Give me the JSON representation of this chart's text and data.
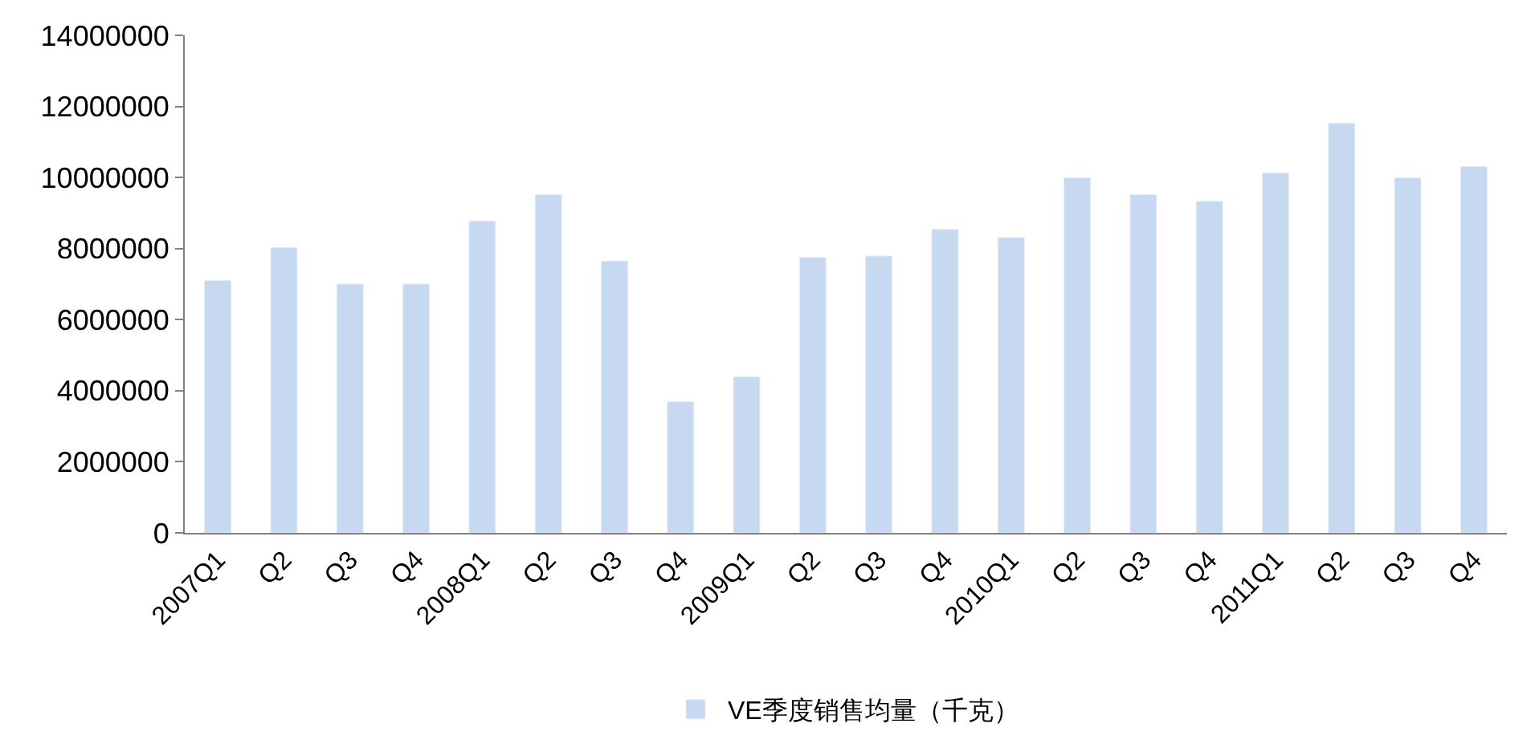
{
  "chart_data": {
    "type": "bar",
    "categories": [
      "2007Q1",
      "Q2",
      "Q3",
      "Q4",
      "2008Q1",
      "Q2",
      "Q3",
      "Q4",
      "2009Q1",
      "Q2",
      "Q3",
      "Q4",
      "2010Q1",
      "Q2",
      "Q3",
      "Q4",
      "2011Q1",
      "Q2",
      "Q3",
      "Q4"
    ],
    "series": [
      {
        "name": "VE季度销售均量（千克）",
        "color": "#c6d9f1",
        "values": [
          7100000,
          8030000,
          7000000,
          7000000,
          8770000,
          9520000,
          7650000,
          3690000,
          4390000,
          7750000,
          7790000,
          8540000,
          8310000,
          9990000,
          9520000,
          9330000,
          10130000,
          11530000,
          9990000,
          10310000
        ]
      }
    ],
    "ylim": [
      0,
      14000000
    ],
    "yticks": [
      0,
      2000000,
      4000000,
      6000000,
      8000000,
      10000000,
      12000000,
      14000000
    ],
    "legend": "bottom"
  }
}
